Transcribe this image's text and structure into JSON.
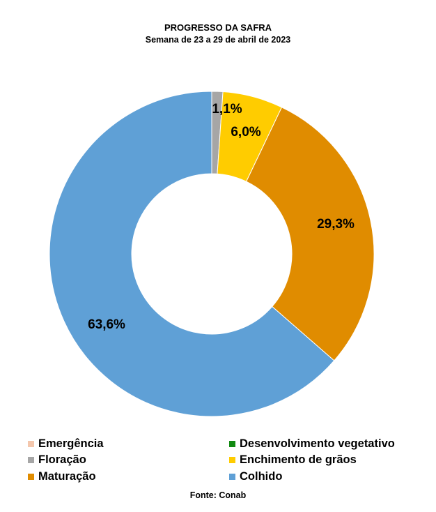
{
  "chart_data": {
    "type": "pie",
    "title": "PROGRESSO DA SAFRA",
    "subtitle": "Semana de 23 a 29 de abril de 2023",
    "categories": [
      "Emergência",
      "Desenvolvimento vegetativo",
      "Floração",
      "Enchimento de grãos",
      "Maturação",
      "Colhido"
    ],
    "values": [
      0,
      0,
      1.1,
      6.0,
      29.3,
      63.6
    ],
    "labels": [
      "",
      "",
      "1,1%",
      "6,0%",
      "29,3%",
      "63,6%"
    ],
    "colors": [
      "#f4c7ad",
      "#118a11",
      "#a6a6a6",
      "#ffcc00",
      "#e08c00",
      "#5fa0d6"
    ],
    "donut": true,
    "legend_position": "bottom",
    "source": "Fonte: Conab"
  }
}
